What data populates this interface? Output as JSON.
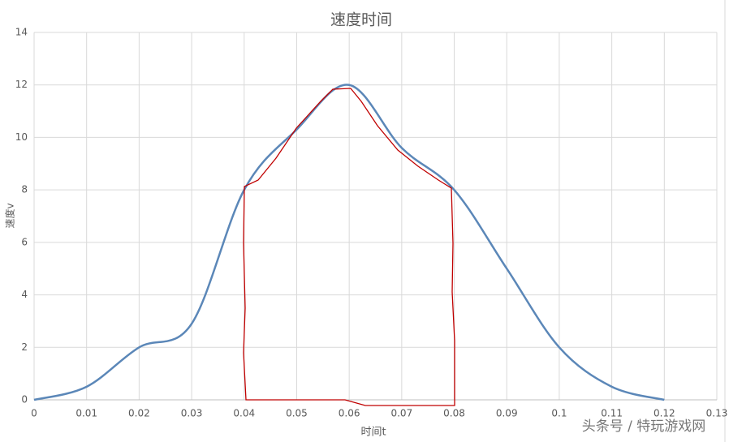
{
  "chart_data": {
    "type": "line",
    "title": "速度时间",
    "x_label": "时间t",
    "y_label": "速度v",
    "x": [
      0,
      0.01,
      0.02,
      0.03,
      0.04,
      0.05,
      0.06,
      0.07,
      0.08,
      0.09,
      0.1,
      0.11,
      0.12
    ],
    "series": [
      {
        "name": "速度v",
        "color": "#5b87b8",
        "values": [
          0,
          0.5,
          2,
          2.9,
          8,
          10.3,
          12,
          9.6,
          8,
          5,
          2,
          0.5,
          0
        ]
      }
    ],
    "xlim": [
      0,
      0.13
    ],
    "xticks": [
      0,
      0.01,
      0.02,
      0.03,
      0.04,
      0.05,
      0.06,
      0.07,
      0.08,
      0.09,
      0.1,
      0.11,
      0.12,
      0.13
    ],
    "ylim": [
      0,
      14
    ],
    "yticks": [
      0,
      2,
      4,
      6,
      8,
      10,
      12,
      14
    ],
    "grid": true,
    "smooth": true
  },
  "watermark": "头条号 / 特玩游戏网"
}
